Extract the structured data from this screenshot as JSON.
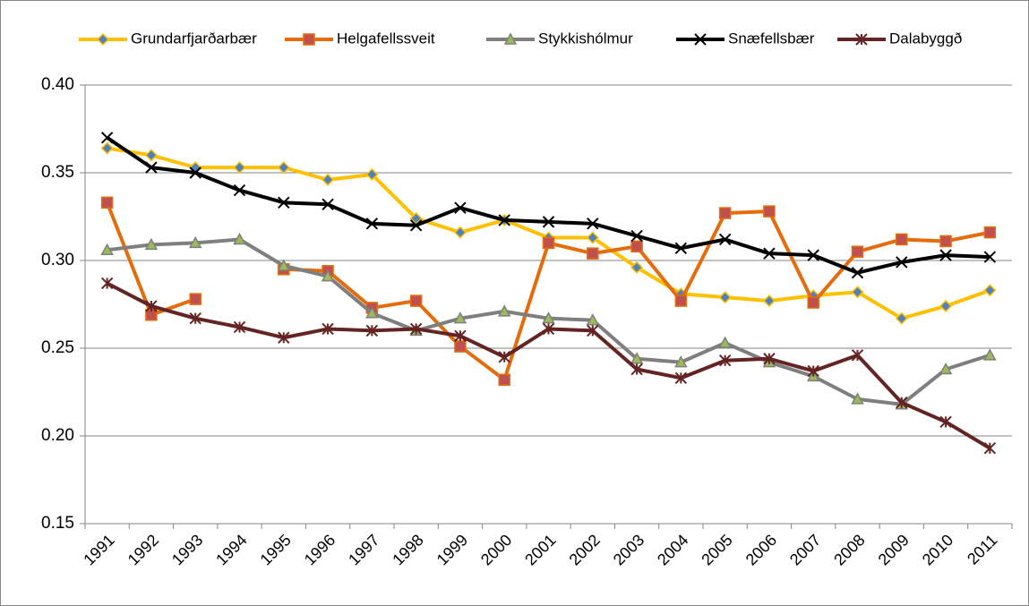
{
  "chart_data": {
    "type": "line",
    "categories": [
      "1991",
      "1992",
      "1993",
      "1994",
      "1995",
      "1996",
      "1997",
      "1998",
      "1999",
      "2000",
      "2001",
      "2002",
      "2003",
      "2004",
      "2005",
      "2006",
      "2007",
      "2008",
      "2009",
      "2010",
      "2011"
    ],
    "series": [
      {
        "name": "Grundarfjarðarbær",
        "color": "#FFC000",
        "marker": "diamond",
        "marker_color": "#4F81BD",
        "values": [
          0.364,
          0.36,
          0.353,
          0.353,
          0.353,
          0.346,
          0.349,
          0.324,
          0.316,
          0.323,
          0.313,
          0.313,
          0.296,
          0.281,
          0.279,
          0.277,
          0.28,
          0.282,
          0.267,
          0.274,
          0.283
        ]
      },
      {
        "name": "Helgafellssveit",
        "color": "#E46C0A",
        "marker": "square",
        "marker_color": "#C0504D",
        "values": [
          0.333,
          0.269,
          0.278,
          null,
          0.295,
          0.294,
          0.273,
          0.277,
          0.251,
          0.232,
          0.31,
          0.304,
          0.308,
          0.277,
          0.327,
          0.328,
          0.276,
          0.305,
          0.312,
          0.311,
          0.316
        ]
      },
      {
        "name": "Stykkishólmur",
        "color": "#7F7F7F",
        "marker": "triangle",
        "marker_color": "#9BBB59",
        "values": [
          0.306,
          0.309,
          0.31,
          0.312,
          0.297,
          0.291,
          0.27,
          0.26,
          0.267,
          0.271,
          0.267,
          0.266,
          0.244,
          0.242,
          0.253,
          0.242,
          0.234,
          0.221,
          0.218,
          0.238,
          0.246
        ]
      },
      {
        "name": "Snæfellsbær",
        "color": "#000000",
        "marker": "x",
        "marker_color": "#000000",
        "values": [
          0.37,
          0.353,
          0.35,
          0.34,
          0.333,
          0.332,
          0.321,
          0.32,
          0.33,
          0.323,
          0.322,
          0.321,
          0.314,
          0.307,
          0.312,
          0.304,
          0.303,
          0.293,
          0.299,
          0.303,
          0.302
        ]
      },
      {
        "name": "Dalabyggð",
        "color": "#632423",
        "marker": "star",
        "marker_color": "#632423",
        "values": [
          0.287,
          0.274,
          0.267,
          0.262,
          0.256,
          0.261,
          0.26,
          0.261,
          0.257,
          0.245,
          0.261,
          0.26,
          0.238,
          0.233,
          0.243,
          0.244,
          0.237,
          0.246,
          0.219,
          0.208,
          0.193
        ]
      }
    ],
    "ylim": [
      0.15,
      0.4
    ],
    "yticks": [
      0.15,
      {
        "value": 0.2,
        "label": "0.20"
      },
      0.25,
      {
        "value": 0.3,
        "label": "0.30"
      },
      0.35,
      {
        "value": 0.4,
        "label": "0.40"
      }
    ],
    "grid": true,
    "legend": "top"
  }
}
